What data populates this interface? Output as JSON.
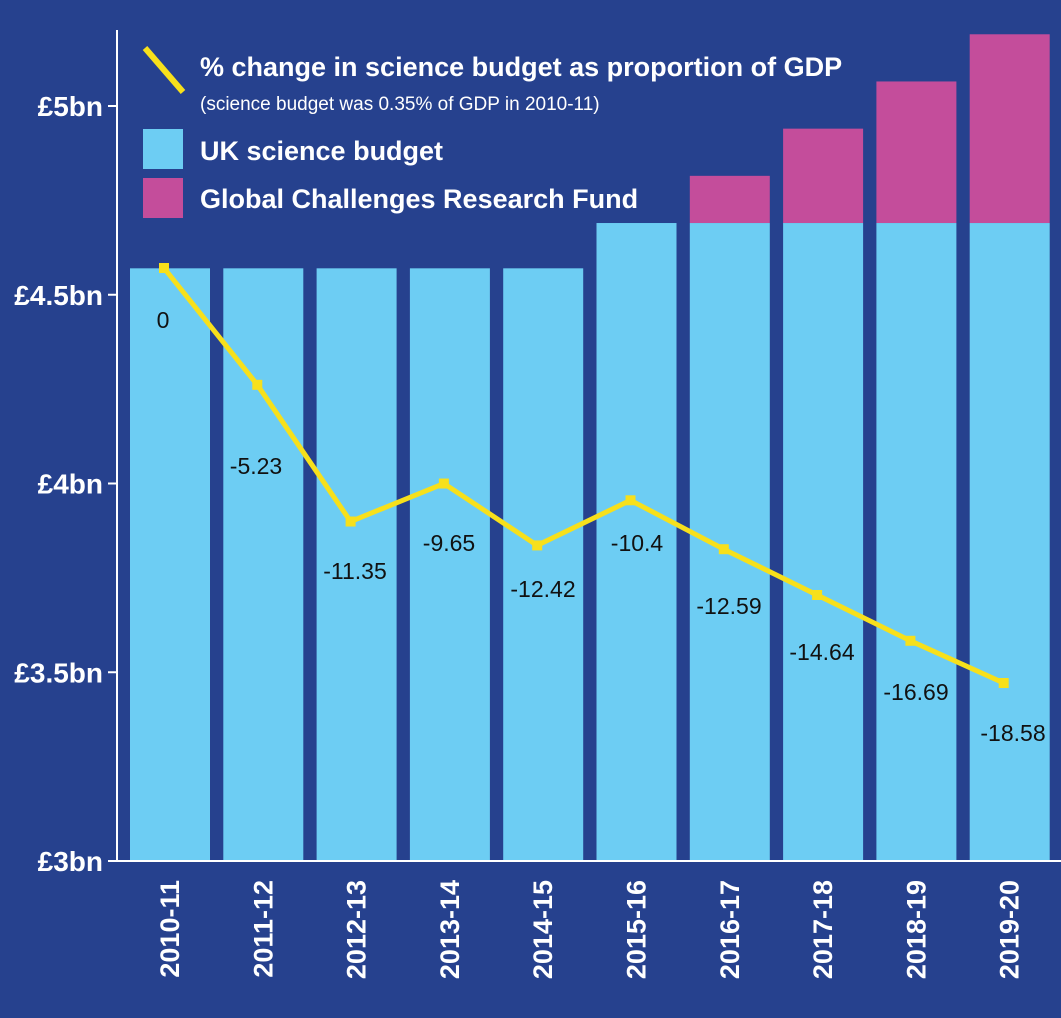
{
  "chart_data": {
    "type": "bar",
    "categories": [
      "2010-11",
      "2011-12",
      "2012-13",
      "2013-14",
      "2014-15",
      "2015-16",
      "2016-17",
      "2017-18",
      "2018-19",
      "2019-20"
    ],
    "series": [
      {
        "name": "UK science budget",
        "type": "bar",
        "stack": "budget",
        "color": "#6dcdf3",
        "values": [
          4.57,
          4.57,
          4.57,
          4.57,
          4.57,
          4.69,
          4.69,
          4.69,
          4.69,
          4.69
        ]
      },
      {
        "name": "Global Challenges Research Fund",
        "type": "bar",
        "stack": "budget",
        "color": "#c44d9b",
        "values": [
          0,
          0,
          0,
          0,
          0,
          0,
          0.125,
          0.25,
          0.375,
          0.5
        ]
      },
      {
        "name": "% change in science budget as proportion of GDP",
        "type": "line",
        "color": "#f7e01b",
        "values": [
          0,
          -5.23,
          -11.35,
          -9.65,
          -12.42,
          -10.4,
          -12.59,
          -14.64,
          -16.69,
          -18.58
        ],
        "labels": [
          "0",
          "-5.23",
          "-11.35",
          "-9.65",
          "-12.42",
          "-10.4",
          "-12.59",
          "-14.64",
          "-16.69",
          "-18.58"
        ]
      }
    ],
    "ylim": [
      3,
      5.2
    ],
    "yticks": [
      {
        "value": 5,
        "label": "£5bn"
      },
      {
        "value": 4.5,
        "label": "£4.5bn"
      },
      {
        "value": 4,
        "label": "£4bn"
      },
      {
        "value": 3.5,
        "label": "£3.5bn"
      },
      {
        "value": 3,
        "label": "£3bn"
      }
    ],
    "line_note": "(science budget was 0.35% of GDP in 2010-11)",
    "legend_position": "top-left",
    "grid": false
  }
}
